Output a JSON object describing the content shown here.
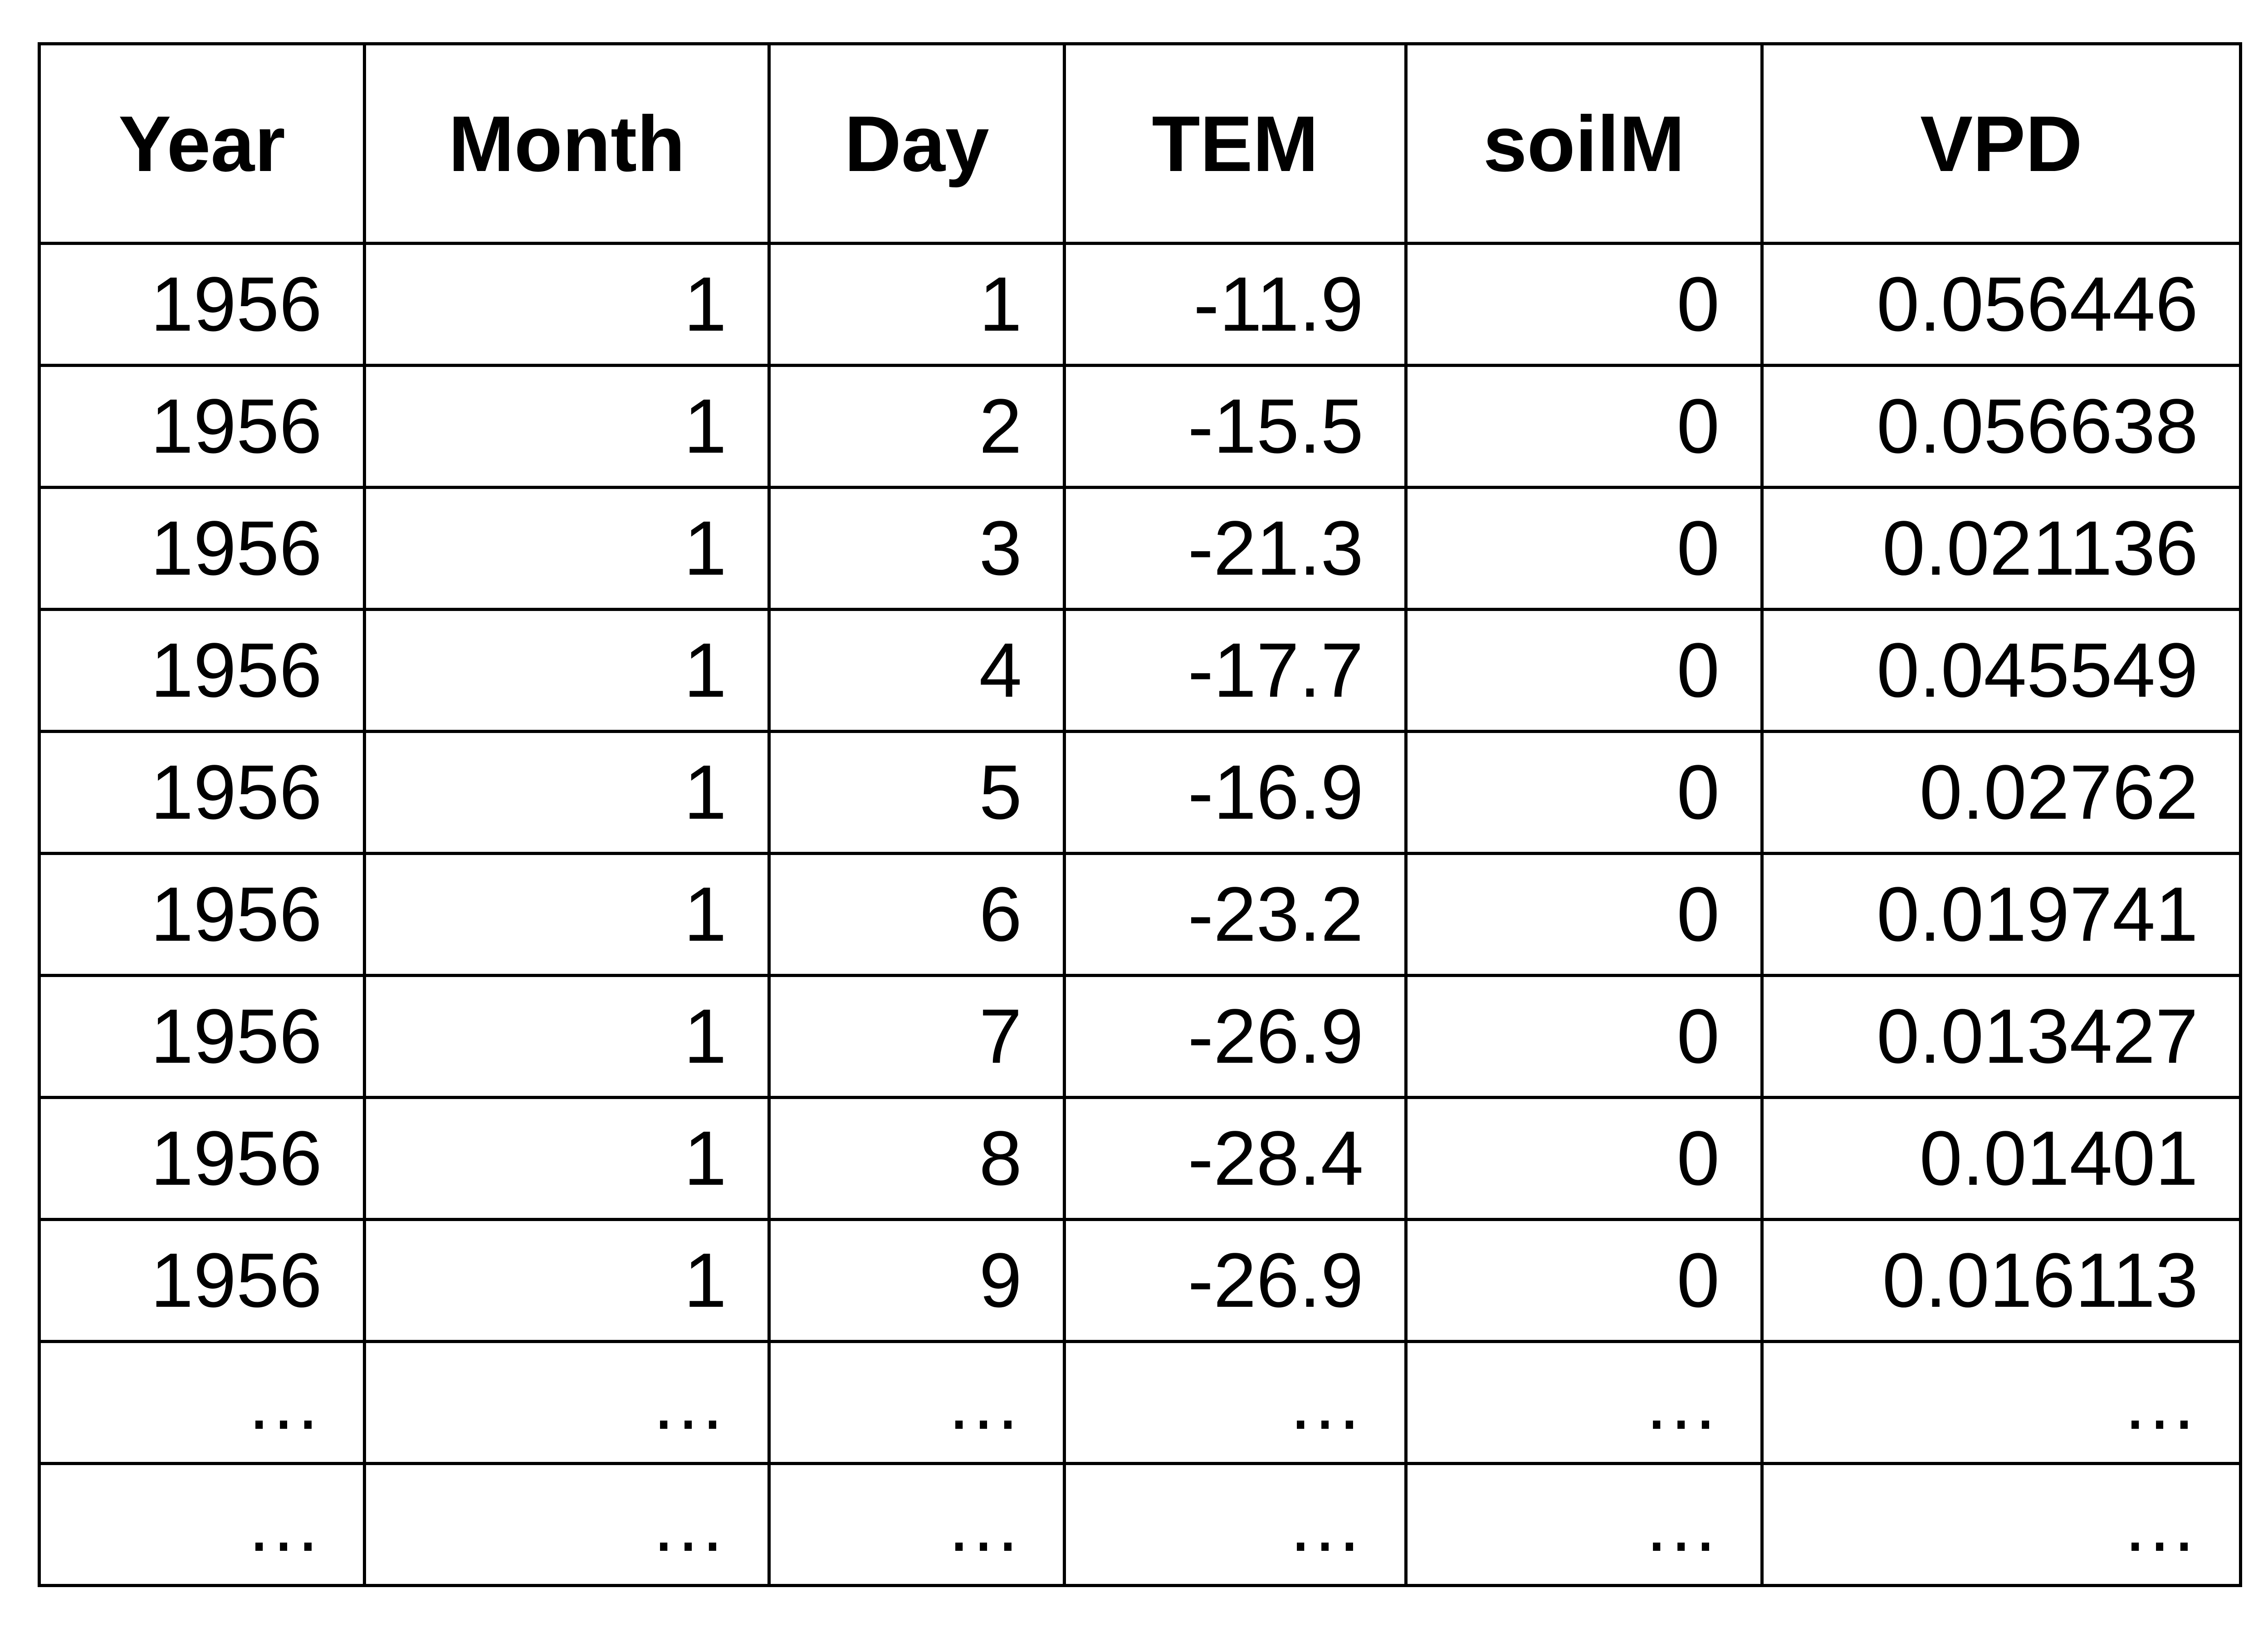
{
  "table": {
    "headers": [
      "Year",
      "Month",
      "Day",
      "TEM",
      "soilM",
      "VPD"
    ],
    "rows": [
      [
        "1956",
        "1",
        "1",
        "-11.9",
        "0",
        "0.056446"
      ],
      [
        "1956",
        "1",
        "2",
        "-15.5",
        "0",
        "0.056638"
      ],
      [
        "1956",
        "1",
        "3",
        "-21.3",
        "0",
        "0.021136"
      ],
      [
        "1956",
        "1",
        "4",
        "-17.7",
        "0",
        "0.045549"
      ],
      [
        "1956",
        "1",
        "5",
        "-16.9",
        "0",
        "0.02762"
      ],
      [
        "1956",
        "1",
        "6",
        "-23.2",
        "0",
        "0.019741"
      ],
      [
        "1956",
        "1",
        "7",
        "-26.9",
        "0",
        "0.013427"
      ],
      [
        "1956",
        "1",
        "8",
        "-28.4",
        "0",
        "0.01401"
      ],
      [
        "1956",
        "1",
        "9",
        "-26.9",
        "0",
        "0.016113"
      ],
      [
        "…",
        "…",
        "…",
        "…",
        "…",
        "…"
      ],
      [
        "…",
        "…",
        "…",
        "…",
        "…",
        "…"
      ]
    ]
  }
}
